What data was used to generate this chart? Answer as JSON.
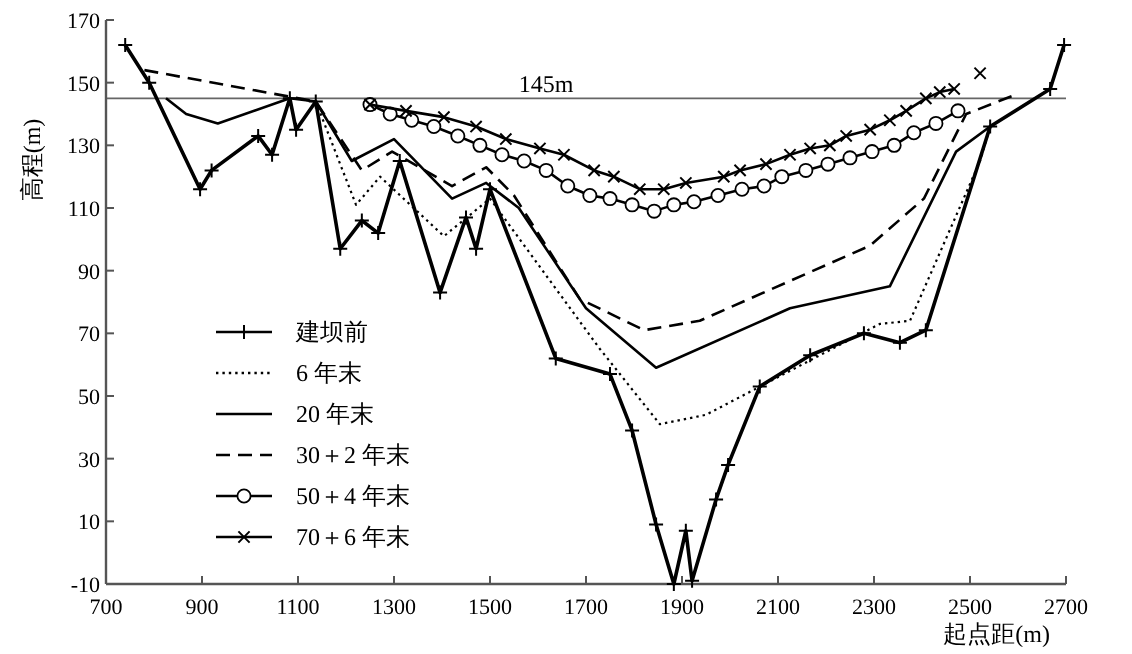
{
  "chart_data": {
    "type": "line",
    "xlabel": "起点距(m)",
    "ylabel": "高程(m)",
    "xlim": [
      700,
      2700
    ],
    "xticks": [
      700,
      900,
      1100,
      1300,
      1500,
      1700,
      1900,
      2100,
      2300,
      2500,
      2700
    ],
    "ylim": [
      -10,
      170
    ],
    "yticks": [
      -10,
      10,
      30,
      50,
      70,
      90,
      110,
      130,
      150,
      170
    ],
    "grid": false,
    "legend": "bottom left",
    "ref_lines": [
      {
        "axis": "y",
        "value": 145,
        "label": "145m",
        "color": "#666666"
      }
    ],
    "series": [
      {
        "name": "建坝前",
        "color": "#000000",
        "line_style": "solid",
        "marker": "plus",
        "x": [
          740,
          790,
          896,
          920,
          1017,
          1046,
          1083,
          1096,
          1137,
          1188,
          1233,
          1267,
          1312,
          1396,
          1450,
          1471,
          1500,
          1637,
          1750,
          1796,
          1846,
          1883,
          1908,
          1921,
          1971,
          1996,
          2062,
          2167,
          2279,
          2354,
          2408,
          2542,
          2667,
          2696
        ],
        "values": [
          162,
          150,
          116,
          122,
          133,
          127,
          145,
          135,
          144,
          97,
          106,
          102,
          125,
          83,
          107,
          97,
          116,
          62,
          57,
          39,
          9,
          -10,
          7,
          -9,
          17,
          28,
          53,
          63,
          70,
          67,
          71,
          136,
          148,
          162
        ]
      },
      {
        "name": "6 年末",
        "color": "#000000",
        "line_style": "dotted",
        "marker": "none",
        "x": [
          1137,
          1221,
          1271,
          1404,
          1500,
          1729,
          1854,
          1950,
          2312,
          2375,
          2521,
          2542
        ],
        "values": [
          144,
          111,
          120,
          101,
          113,
          65,
          41,
          44,
          73,
          74,
          125,
          136
        ]
      },
      {
        "name": "20 年末",
        "color": "#000000",
        "line_style": "solid",
        "marker": "none",
        "x": [
          825,
          867,
          933,
          1083,
          1137,
          1212,
          1300,
          1421,
          1492,
          1560,
          1700,
          1846,
          2125,
          2333,
          2471,
          2542
        ],
        "values": [
          145,
          140,
          137,
          145,
          144,
          125,
          132,
          113,
          118,
          110,
          78,
          59,
          78,
          85,
          128,
          136
        ]
      },
      {
        "name": "30＋2 年末",
        "color": "#000000",
        "line_style": "dashed",
        "marker": "none",
        "x": [
          780,
          1137,
          1233,
          1296,
          1421,
          1492,
          1550,
          1687,
          1821,
          1937,
          2292,
          2404,
          2492,
          2592
        ],
        "values": [
          154,
          144,
          122,
          128,
          117,
          123,
          114,
          81,
          71,
          74,
          98,
          113,
          140,
          146
        ]
      },
      {
        "name": "50＋4 年末",
        "color": "#000000",
        "line_style": "solid",
        "marker": "circle",
        "x": [
          1250,
          1292,
          1337,
          1383,
          1433,
          1479,
          1525,
          1571,
          1617,
          1662,
          1708,
          1750,
          1796,
          1842,
          1883,
          1925,
          1975,
          2025,
          2071,
          2108,
          2158,
          2204,
          2250,
          2296,
          2342,
          2383,
          2429,
          2475
        ],
        "values": [
          143,
          140,
          138,
          136,
          133,
          130,
          127,
          125,
          122,
          117,
          114,
          113,
          111,
          109,
          111,
          112,
          114,
          116,
          117,
          120,
          122,
          124,
          126,
          128,
          130,
          134,
          137,
          141
        ]
      },
      {
        "name": "70＋6 年末",
        "color": "#000000",
        "line_style": "solid",
        "marker": "cross",
        "x": [
          1250,
          1325,
          1404,
          1471,
          1533,
          1604,
          1654,
          1717,
          1758,
          1812,
          1862,
          1908,
          1987,
          2021,
          2075,
          2125,
          2167,
          2208,
          2242,
          2292,
          2333,
          2367,
          2408,
          2437,
          2467,
          2494,
          2521
        ],
        "values": [
          143,
          141,
          139,
          136,
          132,
          129,
          127,
          122,
          120,
          116,
          116,
          118,
          120,
          122,
          124,
          127,
          129,
          130,
          133,
          135,
          138,
          141,
          145,
          147,
          148,
          null,
          153
        ]
      }
    ]
  }
}
